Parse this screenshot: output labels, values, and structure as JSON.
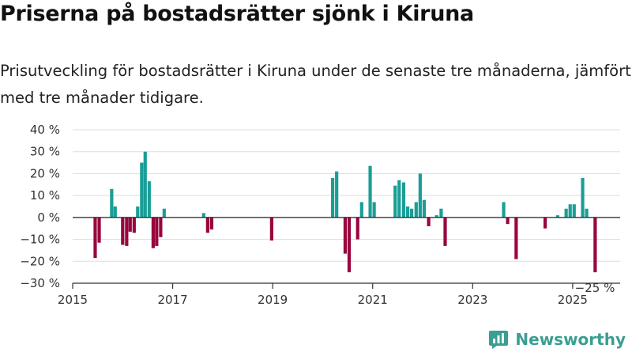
{
  "header": {
    "title": "Priserna på bostadsrätter sjönk i Kiruna",
    "subtitle": "Prisutveckling för bostadsrätter i Kiruna under de senaste tre månaderna, jämfört med tre månader tidigare."
  },
  "logo": {
    "name": "Newsworthy",
    "icon": "newsworthy-logo-icon"
  },
  "colors": {
    "positive": "#1a9e96",
    "negative": "#99063f",
    "grid": "#dddddd",
    "logo": "#3a9e92"
  },
  "chart_data": {
    "type": "bar",
    "title": "Priserna på bostadsrätter sjönk i Kiruna",
    "subtitle": "Prisutveckling för bostadsrätter i Kiruna under de senaste tre månaderna, jämfört med tre månader tidigare.",
    "xlim": [
      2015,
      2025.95
    ],
    "ylim": [
      -30,
      40
    ],
    "y_ticks": [
      -30,
      -20,
      -10,
      0,
      10,
      20,
      30,
      40
    ],
    "y_tick_labels": [
      "−30 %",
      "−20 %",
      "−10 %",
      "0 %",
      "10 %",
      "20 %",
      "30 %",
      "40 %"
    ],
    "x_ticks": [
      2015,
      2017,
      2019,
      2021,
      2023,
      2025
    ],
    "x_tick_labels": [
      "2015",
      "2017",
      "2019",
      "2021",
      "2023",
      "2025"
    ],
    "grid": "horizontal",
    "annotation": {
      "x": 2025.45,
      "y": -25,
      "text": "−25 %"
    },
    "x": [
      2015.45,
      2015.53,
      2015.78,
      2015.85,
      2016.0,
      2016.08,
      2016.15,
      2016.23,
      2016.3,
      2016.38,
      2016.45,
      2016.53,
      2016.61,
      2016.68,
      2016.76,
      2016.83,
      2016.92,
      2017.62,
      2017.7,
      2017.78,
      2018.98,
      2020.2,
      2020.28,
      2020.45,
      2020.53,
      2020.7,
      2020.78,
      2020.95,
      2021.03,
      2021.45,
      2021.53,
      2021.62,
      2021.7,
      2021.78,
      2021.87,
      2021.95,
      2022.03,
      2022.12,
      2022.28,
      2022.37,
      2022.45,
      2022.78,
      2023.62,
      2023.7,
      2023.87,
      2024.45,
      2024.7,
      2024.87,
      2024.95,
      2025.03,
      2025.2,
      2025.28,
      2025.45
    ],
    "values": [
      -18.5,
      -11.5,
      13,
      5,
      -12.5,
      -13,
      -6.5,
      -7,
      5,
      25,
      30,
      16.5,
      -14,
      -13,
      -9,
      4,
      null,
      2,
      -7,
      -5.5,
      -10.5,
      18,
      21,
      -16.5,
      -25,
      -10,
      7,
      23.5,
      7,
      14.5,
      17,
      16,
      5,
      4,
      7,
      20,
      8,
      -4,
      1,
      4,
      -13,
      null,
      7,
      -3,
      -19,
      -5,
      1,
      4,
      6,
      6,
      18,
      4,
      -25
    ]
  }
}
